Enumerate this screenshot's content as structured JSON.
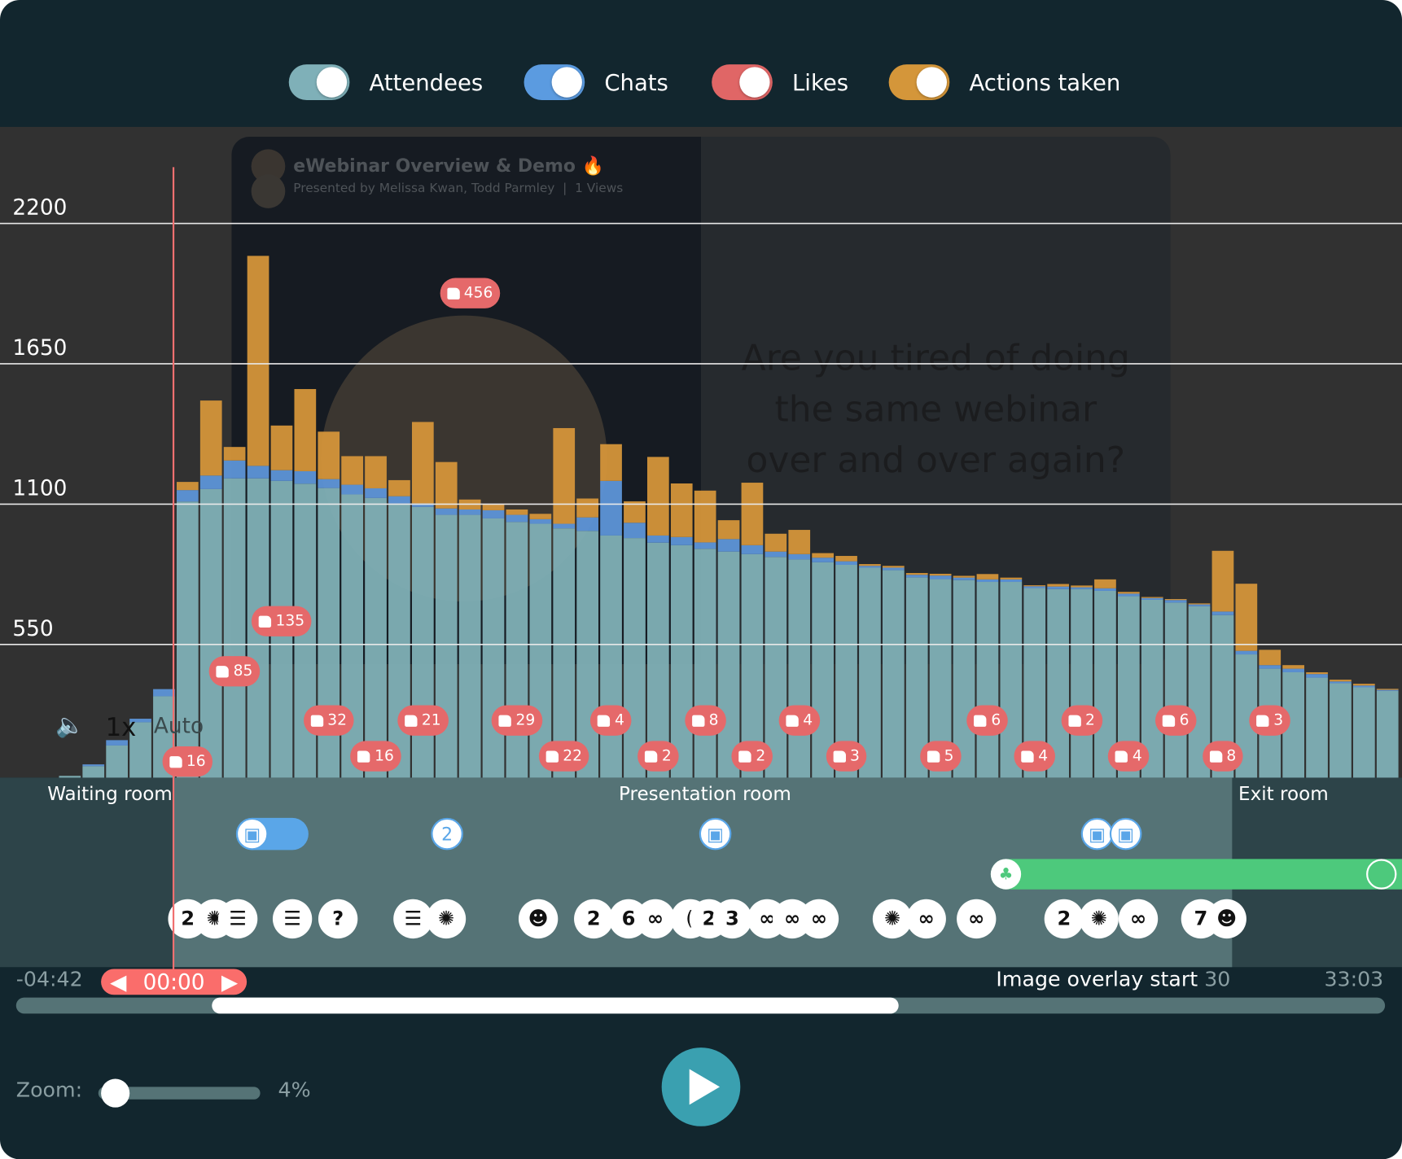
{
  "toggles": [
    {
      "label": "Attendees",
      "color": "#7fb0b8",
      "on": true
    },
    {
      "label": "Chats",
      "color": "#5b9be0",
      "on": true
    },
    {
      "label": "Likes",
      "color": "#e06666",
      "on": true
    },
    {
      "label": "Actions taken",
      "color": "#d4963a",
      "on": true
    }
  ],
  "video": {
    "title": "eWebinar Overview & Demo 🔥",
    "subtitle": "Presented by Melissa Kwan, Todd Parmley  |  1 Views",
    "slide_text": [
      "Are you tired of doing",
      "the same webinar",
      "over and over again?"
    ],
    "speed": "1x",
    "quality": "Auto"
  },
  "chart_data": {
    "type": "bar",
    "stacked": true,
    "ylim": [
      0,
      2400
    ],
    "yticks": [
      "550",
      "1100",
      "1650",
      "2200"
    ],
    "grid": true,
    "series": [
      {
        "name": "Attendees",
        "color": "#7fb0b6",
        "values": [
          35,
          73,
          154,
          245,
          347,
          1110,
          1159,
          1201,
          1201,
          1191,
          1180,
          1163,
          1138,
          1124,
          1103,
          1089,
          1058,
          1058,
          1044,
          1030,
          1023,
          1005,
          995,
          977,
          967,
          949,
          939,
          925,
          914,
          904,
          893,
          883,
          872,
          862,
          851,
          841,
          813,
          806,
          802,
          795,
          795,
          771,
          767,
          767,
          760,
          739,
          725,
          714,
          700,
          665,
          511,
          455,
          441,
          420,
          398,
          382,
          368
        ]
      },
      {
        "name": "Chats",
        "color": "#5d95d8",
        "values": [
          0,
          7,
          21,
          14,
          28,
          45,
          53,
          70,
          49,
          42,
          49,
          35,
          38,
          38,
          28,
          14,
          25,
          21,
          32,
          28,
          18,
          18,
          53,
          214,
          60,
          28,
          32,
          25,
          49,
          35,
          21,
          21,
          18,
          14,
          7,
          10,
          10,
          14,
          10,
          10,
          10,
          7,
          10,
          7,
          10,
          10,
          7,
          10,
          7,
          14,
          14,
          14,
          14,
          14,
          7,
          7,
          4
        ]
      },
      {
        "name": "Actions taken",
        "color": "#d4953a",
        "values": [
          0,
          0,
          0,
          0,
          0,
          32,
          294,
          53,
          823,
          175,
          322,
          186,
          112,
          126,
          63,
          319,
          182,
          39,
          25,
          21,
          21,
          375,
          74,
          144,
          84,
          308,
          210,
          203,
          74,
          245,
          70,
          95,
          18,
          21,
          7,
          7,
          7,
          7,
          7,
          21,
          7,
          4,
          10,
          7,
          35,
          7,
          4,
          4,
          4,
          238,
          263,
          60,
          14,
          7,
          7,
          7,
          4
        ]
      }
    ],
    "likes": [
      {
        "bar": 5,
        "value": 16
      },
      {
        "bar": 7,
        "value": 85
      },
      {
        "bar": 9,
        "value": 135
      },
      {
        "bar": 11,
        "value": 32
      },
      {
        "bar": 13,
        "value": 16
      },
      {
        "bar": 15,
        "value": 21
      },
      {
        "bar": 17,
        "value": 456
      },
      {
        "bar": 19,
        "value": 29
      },
      {
        "bar": 21,
        "value": 22
      },
      {
        "bar": 23,
        "value": 4
      },
      {
        "bar": 25,
        "value": 2
      },
      {
        "bar": 27,
        "value": 8
      },
      {
        "bar": 29,
        "value": 2
      },
      {
        "bar": 31,
        "value": 4
      },
      {
        "bar": 33,
        "value": 3
      },
      {
        "bar": 37,
        "value": 5
      },
      {
        "bar": 39,
        "value": 6
      },
      {
        "bar": 41,
        "value": 4
      },
      {
        "bar": 43,
        "value": 2
      },
      {
        "bar": 45,
        "value": 4
      },
      {
        "bar": 47,
        "value": 6
      },
      {
        "bar": 49,
        "value": 8
      },
      {
        "bar": 51,
        "value": 3
      }
    ]
  },
  "rooms": {
    "waiting": "Waiting room",
    "presentation": "Presentation room",
    "exit": "Exit room"
  },
  "overlays": [
    {
      "icon": "image-icon",
      "text": ""
    },
    {
      "icon": "count",
      "text": "2"
    },
    {
      "icon": "image-icon",
      "text": ""
    },
    {
      "icon": "image-icon",
      "text": ""
    },
    {
      "icon": "image-icon",
      "text": ""
    }
  ],
  "interactions": [
    {
      "icon": "count",
      "text": "2"
    },
    {
      "icon": "lightbulb-icon",
      "text": "✺"
    },
    {
      "icon": "checklist-icon",
      "text": "☰"
    },
    {
      "icon": "checklist-icon",
      "text": "☰"
    },
    {
      "icon": "question-icon",
      "text": "?"
    },
    {
      "icon": "checklist-icon",
      "text": "☰"
    },
    {
      "icon": "lightbulb-icon",
      "text": "✺"
    },
    {
      "icon": "chat-smile-icon",
      "text": "☻"
    },
    {
      "icon": "count",
      "text": "2"
    },
    {
      "icon": "count",
      "text": "6"
    },
    {
      "icon": "link-icon",
      "text": "∞"
    },
    {
      "icon": "count",
      "text": "("
    },
    {
      "icon": "count",
      "text": "2"
    },
    {
      "icon": "count",
      "text": "3"
    },
    {
      "icon": "link-icon",
      "text": "∞"
    },
    {
      "icon": "link-icon",
      "text": "∞"
    },
    {
      "icon": "link-icon",
      "text": "∞"
    },
    {
      "icon": "lightbulb-icon",
      "text": "✺"
    },
    {
      "icon": "link-icon",
      "text": "∞"
    },
    {
      "icon": "link-icon",
      "text": "∞"
    },
    {
      "icon": "count",
      "text": "2"
    },
    {
      "icon": "lightbulb-icon",
      "text": "✺"
    },
    {
      "icon": "link-icon",
      "text": "∞"
    },
    {
      "icon": "count",
      "text": "7"
    },
    {
      "icon": "chat-smile-icon",
      "text": "☻"
    }
  ],
  "timeline": {
    "start": "-04:42",
    "current": "00:00",
    "hover_label": "Image overlay start",
    "hover_value": "30",
    "end": "33:03"
  },
  "zoom": {
    "label": "Zoom:",
    "value": "4%",
    "level": 0.04
  }
}
